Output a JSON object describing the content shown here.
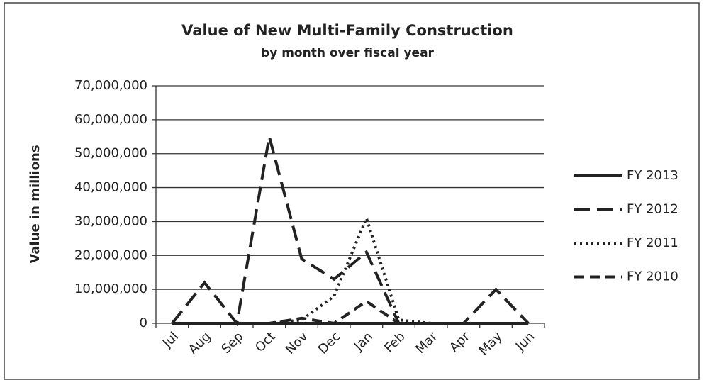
{
  "chart_data": {
    "type": "line",
    "title": "Value of New Multi-Family Construction",
    "subtitle": "by month over fiscal year",
    "y_label": "Value in millions",
    "categories": [
      "Jul",
      "Aug",
      "Sep",
      "Oct",
      "Nov",
      "Dec",
      "Jan",
      "Feb",
      "Mar",
      "Apr",
      "May",
      "Jun"
    ],
    "series": [
      {
        "name": "FY 2013",
        "color": "#222222",
        "style": "solid",
        "values": [
          0,
          0,
          0,
          0,
          0,
          0,
          0,
          0,
          0,
          0,
          0,
          0
        ]
      },
      {
        "name": "FY 2012",
        "color": "#222222",
        "style": "long-dash",
        "values": [
          0,
          12000000,
          0,
          55000000,
          19000000,
          13000000,
          21000000,
          0,
          0,
          0,
          10000000,
          0
        ]
      },
      {
        "name": "FY 2011",
        "color": "#222222",
        "style": "dotted",
        "values": [
          0,
          0,
          0,
          0,
          1000000,
          8000000,
          31000000,
          1000000,
          0,
          0,
          0,
          0
        ]
      },
      {
        "name": "FY 2010",
        "color": "#222222",
        "style": "dash",
        "values": [
          0,
          0,
          0,
          0,
          1500000,
          0,
          6500000,
          0,
          0,
          0,
          0,
          0
        ]
      }
    ],
    "ylim": [
      0,
      70000000
    ],
    "yticks": [
      0,
      {
        "value": 10000000,
        "label": "10,000,000"
      },
      {
        "value": 20000000,
        "label": "20,000,000"
      },
      {
        "value": 30000000,
        "label": "30,000,000"
      },
      {
        "value": 40000000,
        "label": "40,000,000"
      },
      {
        "value": 50000000,
        "label": "50,000,000"
      },
      {
        "value": 60000000,
        "label": "60,000,000"
      },
      {
        "value": 70000000,
        "label": "70,000,000"
      }
    ],
    "grid": true,
    "legend": "right"
  }
}
